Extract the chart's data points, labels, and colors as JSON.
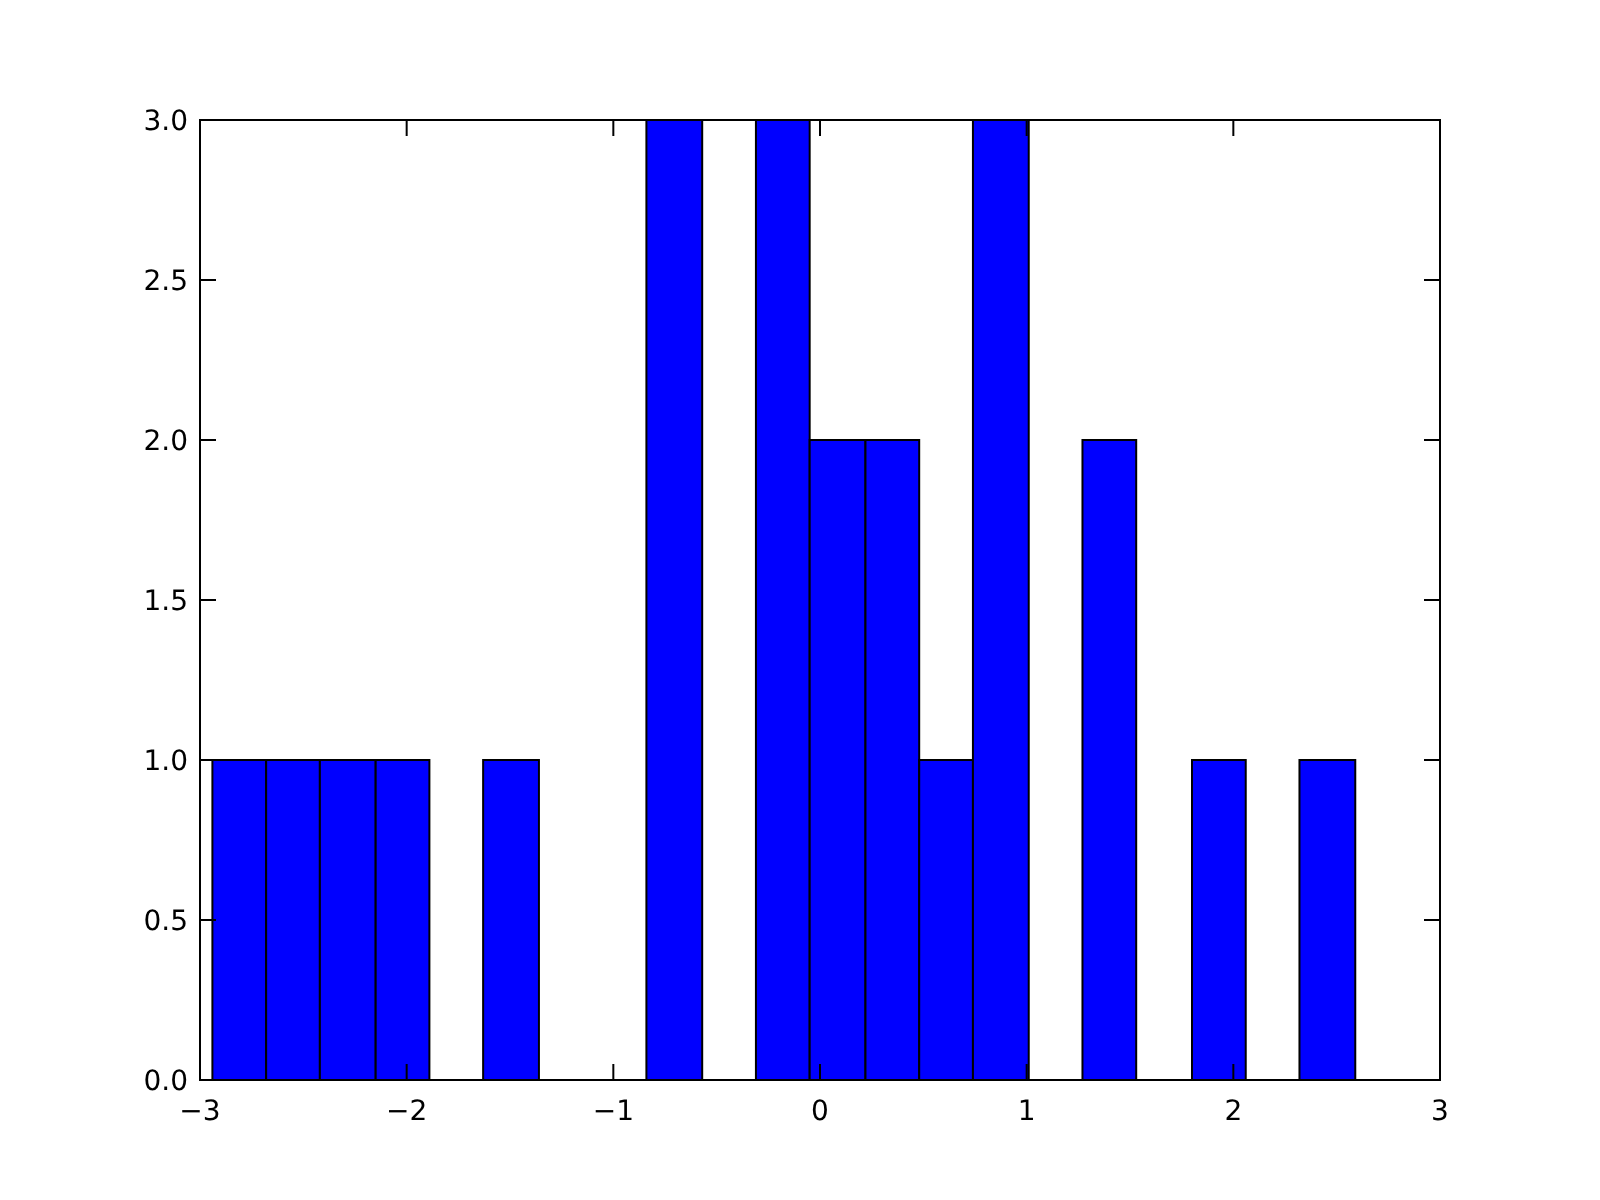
{
  "chart_data": {
    "type": "histogram",
    "color": "#0000ff",
    "bins": [
      -2.94,
      -2.68,
      -2.42,
      -2.15,
      -1.89,
      -1.63,
      -1.36,
      -0.84,
      -0.57,
      -0.31,
      -0.05,
      0.22,
      0.48,
      0.74,
      1.01,
      1.27,
      1.53,
      1.8,
      2.06,
      2.32,
      2.59
    ],
    "values": [
      1,
      1,
      1,
      1,
      0,
      1,
      0,
      3,
      0,
      3,
      2,
      2,
      1,
      3,
      0,
      2,
      0,
      1,
      0,
      1
    ],
    "xlim": [
      -3,
      3
    ],
    "xticks": [
      {
        "value": -3,
        "label": "−3"
      },
      {
        "value": -2,
        "label": "−2"
      },
      {
        "value": -1,
        "label": "−1"
      },
      0,
      1,
      2,
      3
    ],
    "ylim": [
      0,
      3
    ],
    "yticks": [
      {
        "value": 0,
        "label": "0.0"
      },
      {
        "value": 0.5,
        "label": "0.5"
      },
      {
        "value": 1,
        "label": "1.0"
      },
      {
        "value": 1.5,
        "label": "1.5"
      },
      {
        "value": 2,
        "label": "2.0"
      },
      {
        "value": 2.5,
        "label": "2.5"
      },
      {
        "value": 3,
        "label": "3.0"
      }
    ]
  }
}
